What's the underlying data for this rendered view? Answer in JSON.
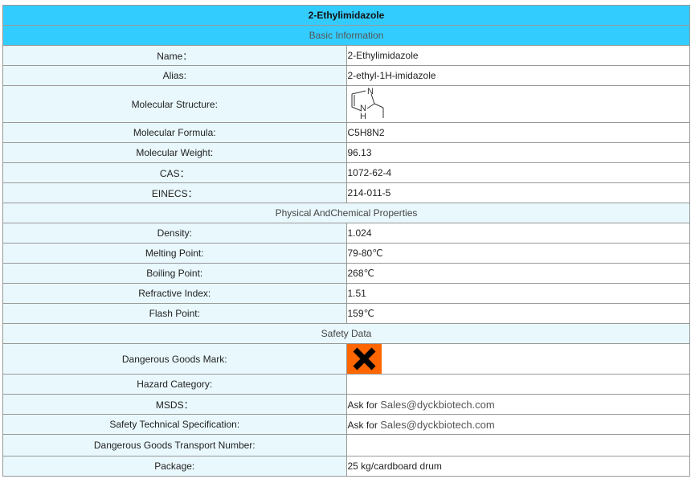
{
  "title": "2-Ethylimidazole",
  "basic": {
    "header": "Basic Information",
    "rows": [
      {
        "label": "Name：",
        "value": "2-Ethylimidazole"
      },
      {
        "label": "Alias:",
        "value": "2-ethyl-1H-imidazole"
      },
      {
        "label": "Molecular Structure:",
        "value": ""
      },
      {
        "label": "Molecular Formula:",
        "value": "C5H8N2"
      },
      {
        "label": "Molecular Weight:",
        "value": "96.13"
      },
      {
        "label": "CAS：",
        "value": "1072-62-4"
      },
      {
        "label": "EINECS：",
        "value": "214-011-5"
      }
    ]
  },
  "structure": {
    "atom_n": "N",
    "atom_nh": "N",
    "atom_h": "H"
  },
  "physical": {
    "header": "Physical AndChemical Properties",
    "rows": [
      {
        "label": "Density:",
        "value": "1.024"
      },
      {
        "label": "Melting Point:",
        "value": "79-80℃"
      },
      {
        "label": "Boiling Point:",
        "value": "268℃"
      },
      {
        "label": "Refractive Index:",
        "value": "1.51"
      },
      {
        "label": "Flash Point:",
        "value": "159℃"
      }
    ]
  },
  "safety": {
    "header": "Safety Data",
    "rows": [
      {
        "label": "Dangerous Goods Mark:",
        "icon": "harmful-x-icon",
        "color": "#ff6600"
      },
      {
        "label": "Hazard Category:",
        "value": ""
      },
      {
        "label": "MSDS：",
        "prefix": "Ask for ",
        "email": "Sales@dyckbiotech.com"
      },
      {
        "label": "Safety Technical Specification:",
        "prefix": "Ask for ",
        "email": "Sales@dyckbiotech.com"
      },
      {
        "label": "Dangerous Goods Transport Number:",
        "value": ""
      },
      {
        "label": "Package:",
        "value": "25 kg/cardboard drum"
      }
    ]
  }
}
